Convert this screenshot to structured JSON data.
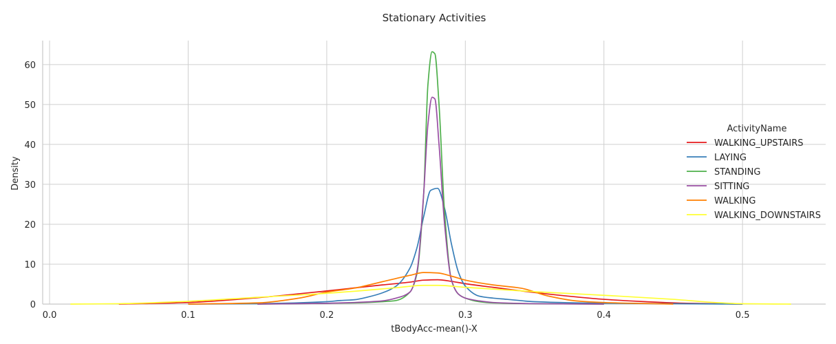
{
  "chart_data": {
    "type": "line",
    "title": "Stationary Activities",
    "xlabel": "tBodyAcc-mean()-X",
    "ylabel": "Density",
    "xlim": [
      -0.005,
      0.56
    ],
    "ylim": [
      0,
      66
    ],
    "xticks": [
      0.0,
      0.1,
      0.2,
      0.3,
      0.4,
      0.5
    ],
    "xtick_labels": [
      "0.0",
      "0.1",
      "0.2",
      "0.3",
      "0.4",
      "0.5"
    ],
    "yticks": [
      0,
      10,
      20,
      30,
      40,
      50,
      60
    ],
    "ytick_labels": [
      "0",
      "10",
      "20",
      "30",
      "40",
      "50",
      "60"
    ],
    "grid": true,
    "legend": {
      "title": "ActivityName",
      "placement": "right"
    },
    "series": [
      {
        "name": "WALKING_UPSTAIRS",
        "color": "#e41a1c",
        "x": [
          0.05,
          0.1,
          0.15,
          0.2,
          0.24,
          0.26,
          0.27,
          0.28,
          0.29,
          0.3,
          0.32,
          0.35,
          0.38,
          0.4,
          0.43,
          0.46,
          0.48,
          0.5
        ],
        "y": [
          0.0,
          0.4,
          1.6,
          3.3,
          4.8,
          5.5,
          6.0,
          6.1,
          5.7,
          5.1,
          4.2,
          2.9,
          1.8,
          1.2,
          0.6,
          0.2,
          0.1,
          0.0
        ]
      },
      {
        "name": "LAYING",
        "color": "#377eb8",
        "x": [
          0.1,
          0.15,
          0.2,
          0.21,
          0.22,
          0.23,
          0.24,
          0.25,
          0.26,
          0.265,
          0.27,
          0.275,
          0.28,
          0.285,
          0.29,
          0.295,
          0.3,
          0.31,
          0.32,
          0.33,
          0.35,
          0.4,
          0.45,
          0.5
        ],
        "y": [
          0.0,
          0.1,
          0.6,
          0.9,
          1.1,
          1.8,
          2.8,
          4.5,
          9.0,
          14.0,
          22.0,
          28.5,
          29.0,
          24.0,
          15.0,
          8.0,
          4.5,
          2.0,
          1.5,
          1.2,
          0.6,
          0.2,
          0.1,
          0.0
        ]
      },
      {
        "name": "STANDING",
        "color": "#4daf4a",
        "x": [
          0.15,
          0.2,
          0.22,
          0.24,
          0.25,
          0.26,
          0.265,
          0.27,
          0.273,
          0.276,
          0.278,
          0.281,
          0.285,
          0.29,
          0.295,
          0.3,
          0.31,
          0.32,
          0.35,
          0.4
        ],
        "y": [
          0.0,
          0.2,
          0.3,
          0.6,
          0.9,
          3.0,
          7.5,
          28.0,
          55.0,
          63.2,
          62.7,
          50.0,
          23.0,
          6.0,
          2.5,
          1.5,
          0.6,
          0.3,
          0.1,
          0.0
        ]
      },
      {
        "name": "SITTING",
        "color": "#984ea3",
        "x": [
          0.15,
          0.2,
          0.22,
          0.24,
          0.25,
          0.26,
          0.265,
          0.27,
          0.273,
          0.276,
          0.278,
          0.281,
          0.285,
          0.29,
          0.295,
          0.3,
          0.31,
          0.32,
          0.35,
          0.4
        ],
        "y": [
          0.0,
          0.2,
          0.4,
          0.8,
          1.5,
          3.0,
          8.0,
          28.0,
          45.0,
          51.8,
          51.4,
          40.0,
          20.0,
          6.0,
          2.5,
          1.5,
          0.8,
          0.4,
          0.1,
          0.0
        ]
      },
      {
        "name": "WALKING",
        "color": "#ff7f00",
        "x": [
          0.1,
          0.15,
          0.18,
          0.2,
          0.22,
          0.24,
          0.26,
          0.27,
          0.28,
          0.29,
          0.3,
          0.32,
          0.34,
          0.36,
          0.38,
          0.4,
          0.45
        ],
        "y": [
          0.0,
          0.3,
          1.5,
          3.0,
          4.0,
          5.6,
          7.2,
          7.9,
          7.8,
          7.0,
          6.0,
          4.8,
          4.0,
          2.0,
          0.8,
          0.4,
          0.0
        ]
      },
      {
        "name": "WALKING_DOWNSTAIRS",
        "color": "#ffff33",
        "x": [
          0.015,
          0.05,
          0.1,
          0.15,
          0.2,
          0.25,
          0.27,
          0.28,
          0.3,
          0.35,
          0.4,
          0.45,
          0.48,
          0.5,
          0.535
        ],
        "y": [
          0.0,
          0.1,
          0.7,
          1.7,
          2.7,
          4.1,
          4.7,
          4.7,
          4.2,
          3.1,
          2.2,
          1.2,
          0.4,
          0.1,
          0.0
        ]
      }
    ]
  }
}
